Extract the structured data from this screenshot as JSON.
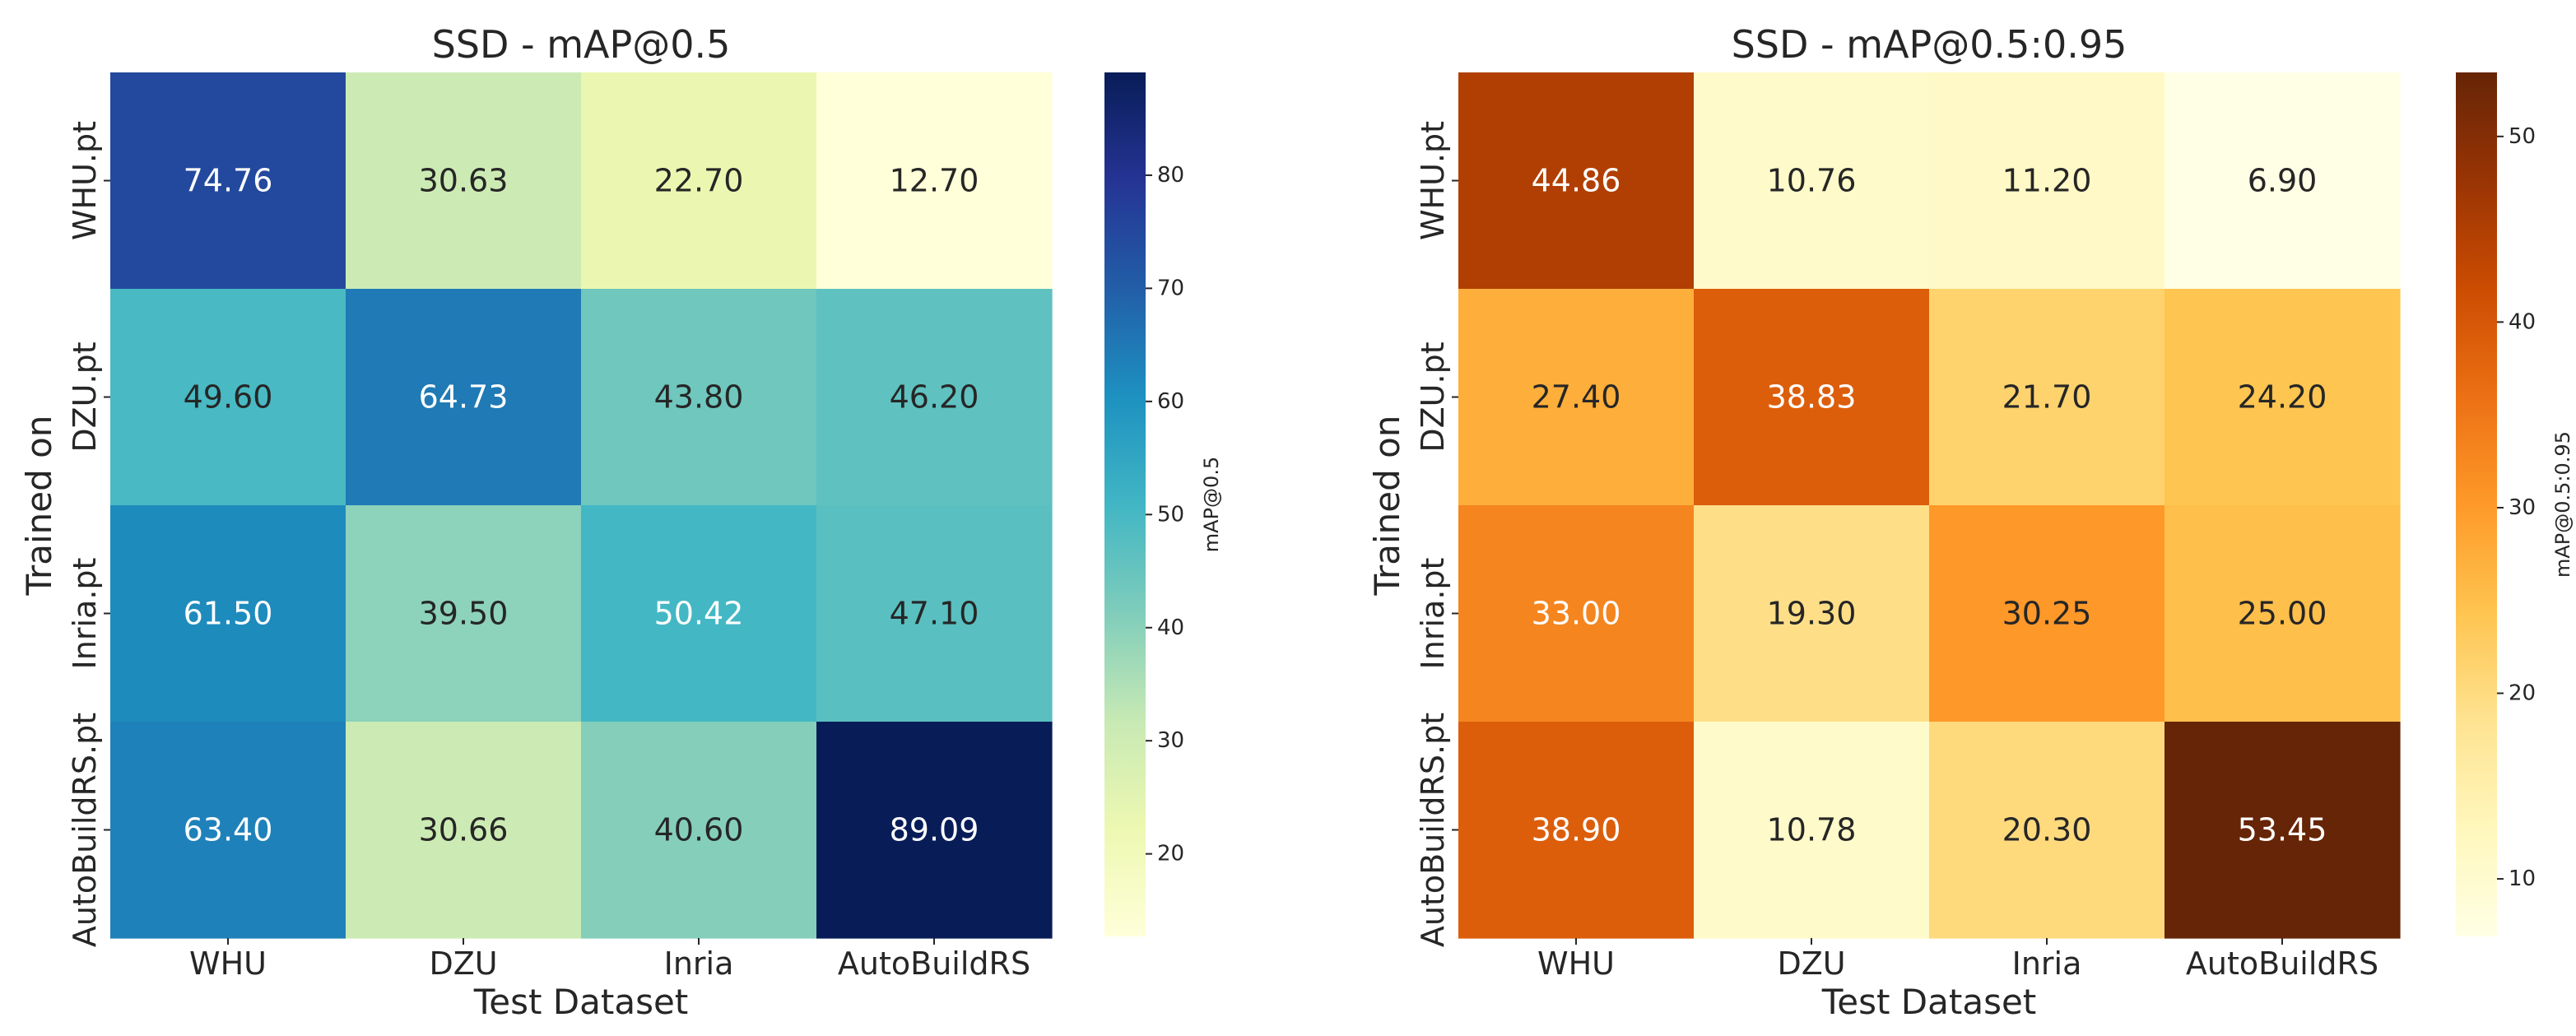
{
  "chart_data": [
    {
      "type": "heatmap",
      "title": "SSD - mAP@0.5",
      "xlabel": "Test Dataset",
      "ylabel": "Trained on",
      "colorbar_label": "mAP@0.5",
      "x_categories": [
        "WHU",
        "DZU",
        "Inria",
        "AutoBuildRS"
      ],
      "y_categories": [
        "WHU.pt",
        "DZU.pt",
        "Inria.pt",
        "AutoBuildRS.pt"
      ],
      "values": [
        [
          74.76,
          30.63,
          22.7,
          12.7
        ],
        [
          49.6,
          64.73,
          43.8,
          46.2
        ],
        [
          61.5,
          39.5,
          50.42,
          47.1
        ],
        [
          63.4,
          30.66,
          40.6,
          89.09
        ]
      ],
      "value_labels": [
        [
          "74.76",
          "30.63",
          "22.70",
          "12.70"
        ],
        [
          "49.60",
          "64.73",
          "43.80",
          "46.20"
        ],
        [
          "61.50",
          "39.50",
          "50.42",
          "47.10"
        ],
        [
          "63.40",
          "30.66",
          "40.60",
          "89.09"
        ]
      ],
      "vmin": 12.7,
      "vmax": 89.09,
      "colorbar_ticks": [
        20,
        30,
        40,
        50,
        60,
        70,
        80
      ],
      "colorbar_tick_labels": [
        "20",
        "30",
        "40",
        "50",
        "60",
        "70",
        "80"
      ],
      "colormap": "YlGnBu",
      "colormap_stops": [
        "#ffffd9",
        "#edf8b1",
        "#c7e9b4",
        "#7fcdbb",
        "#41b6c4",
        "#1d91c0",
        "#225ea8",
        "#253494",
        "#081d58"
      ]
    },
    {
      "type": "heatmap",
      "title": "SSD - mAP@0.5:0.95",
      "xlabel": "Test Dataset",
      "ylabel": "Trained on",
      "colorbar_label": "mAP@0.5:0.95",
      "x_categories": [
        "WHU",
        "DZU",
        "Inria",
        "AutoBuildRS"
      ],
      "y_categories": [
        "WHU.pt",
        "DZU.pt",
        "Inria.pt",
        "AutoBuildRS.pt"
      ],
      "values": [
        [
          44.86,
          10.76,
          11.2,
          6.9
        ],
        [
          27.4,
          38.83,
          21.7,
          24.2
        ],
        [
          33.0,
          19.3,
          30.25,
          25.0
        ],
        [
          38.9,
          10.78,
          20.3,
          53.45
        ]
      ],
      "value_labels": [
        [
          "44.86",
          "10.76",
          "11.20",
          "6.90"
        ],
        [
          "27.40",
          "38.83",
          "21.70",
          "24.20"
        ],
        [
          "33.00",
          "19.30",
          "30.25",
          "25.00"
        ],
        [
          "38.90",
          "10.78",
          "20.30",
          "53.45"
        ]
      ],
      "vmin": 6.9,
      "vmax": 53.45,
      "colorbar_ticks": [
        10,
        20,
        30,
        40,
        50
      ],
      "colorbar_tick_labels": [
        "10",
        "20",
        "30",
        "40",
        "50"
      ],
      "colormap": "YlOrBr",
      "colormap_stops": [
        "#ffffe5",
        "#fff7bc",
        "#fee391",
        "#fec44f",
        "#fe9929",
        "#ec7014",
        "#cc4c02",
        "#993404",
        "#662506"
      ]
    }
  ]
}
